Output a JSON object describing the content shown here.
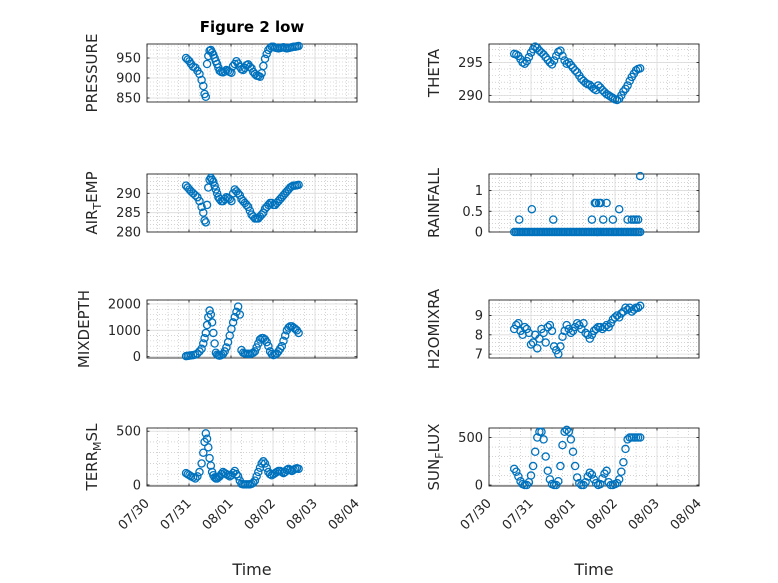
{
  "figure_title": "Figure 2 low",
  "chart_data": [
    {
      "type": "scatter",
      "panel": "top-left",
      "title": "Figure 2 low",
      "ylabel_parts": [
        "PRESSURE"
      ],
      "xlim": [
        0,
        5
      ],
      "ylim": [
        840,
        985
      ],
      "yticks": [
        850,
        900,
        950
      ],
      "ytick_labels": [
        "850",
        "900",
        "950"
      ],
      "x": [
        0.93,
        0.97,
        1.01,
        1.05,
        1.1,
        1.15,
        1.2,
        1.25,
        1.3,
        1.34,
        1.37,
        1.4,
        1.43,
        1.46,
        1.49,
        1.52,
        1.55,
        1.58,
        1.61,
        1.64,
        1.67,
        1.7,
        1.73,
        1.77,
        1.81,
        1.85,
        1.89,
        1.93,
        1.97,
        2.01,
        2.05,
        2.09,
        2.13,
        2.17,
        2.21,
        2.25,
        2.29,
        2.33,
        2.37,
        2.41,
        2.45,
        2.49,
        2.53,
        2.57,
        2.61,
        2.65,
        2.69,
        2.73,
        2.77,
        2.81,
        2.85,
        2.89,
        2.93,
        2.97,
        3.01,
        3.05,
        3.09,
        3.13,
        3.17,
        3.21,
        3.25,
        3.29,
        3.33,
        3.37,
        3.41,
        3.45,
        3.49,
        3.53,
        3.57,
        3.61
      ],
      "y": [
        950,
        946,
        942,
        935,
        928,
        926,
        918,
        910,
        895,
        880,
        860,
        853,
        935,
        955,
        968,
        970,
        964,
        958,
        950,
        942,
        935,
        926,
        918,
        915,
        914,
        916,
        920,
        918,
        915,
        913,
        930,
        935,
        942,
        936,
        928,
        922,
        920,
        925,
        932,
        934,
        928,
        924,
        915,
        910,
        906,
        905,
        903,
        912,
        930,
        948,
        960,
        970,
        975,
        978,
        978,
        976,
        975,
        974,
        975,
        976,
        977,
        975,
        974,
        975,
        976,
        977,
        978,
        978,
        979,
        980
      ]
    },
    {
      "type": "scatter",
      "panel": "top-right",
      "ylabel_parts": [
        "THETA"
      ],
      "xlim": [
        0,
        5
      ],
      "ylim": [
        289,
        297.8
      ],
      "yticks": [
        290,
        295
      ],
      "ytick_labels": [
        "290",
        "295"
      ],
      "x": [
        0.6,
        0.65,
        0.7,
        0.75,
        0.8,
        0.85,
        0.9,
        0.95,
        1.0,
        1.05,
        1.1,
        1.15,
        1.2,
        1.25,
        1.3,
        1.35,
        1.4,
        1.45,
        1.5,
        1.55,
        1.6,
        1.65,
        1.7,
        1.75,
        1.8,
        1.85,
        1.9,
        1.95,
        2.0,
        2.05,
        2.1,
        2.15,
        2.2,
        2.25,
        2.3,
        2.35,
        2.4,
        2.45,
        2.5,
        2.55,
        2.6,
        2.65,
        2.7,
        2.75,
        2.8,
        2.85,
        2.9,
        2.95,
        3.0,
        3.05,
        3.1,
        3.15,
        3.2,
        3.25,
        3.3,
        3.35,
        3.4,
        3.45,
        3.5,
        3.55,
        3.6
      ],
      "y": [
        296.3,
        296.2,
        296.0,
        295.5,
        295.0,
        294.8,
        295.2,
        295.8,
        296.5,
        297.0,
        297.4,
        297.2,
        296.8,
        296.5,
        296.2,
        295.8,
        295.4,
        295.0,
        294.7,
        295.3,
        296.0,
        296.6,
        296.8,
        296.0,
        295.3,
        294.8,
        295.0,
        294.6,
        294.2,
        293.8,
        293.5,
        293.0,
        292.5,
        292.2,
        291.9,
        291.7,
        291.6,
        291.3,
        291.0,
        290.8,
        291.5,
        291.2,
        290.8,
        290.5,
        290.2,
        290.0,
        289.8,
        289.6,
        289.4,
        289.3,
        289.5,
        290.0,
        290.6,
        291.0,
        291.5,
        292.2,
        292.8,
        293.3,
        293.8,
        294.0,
        294.1
      ]
    },
    {
      "type": "scatter",
      "panel": "row2-left",
      "ylabel_parts": [
        "AIR",
        "T",
        "EMP"
      ],
      "xlim": [
        0,
        5
      ],
      "ylim": [
        280,
        295
      ],
      "yticks": [
        280,
        285,
        290
      ],
      "ytick_labels": [
        "280",
        "285",
        "290"
      ],
      "x": [
        0.93,
        0.97,
        1.01,
        1.05,
        1.1,
        1.15,
        1.2,
        1.25,
        1.3,
        1.34,
        1.37,
        1.4,
        1.43,
        1.46,
        1.49,
        1.52,
        1.55,
        1.58,
        1.61,
        1.64,
        1.67,
        1.7,
        1.73,
        1.77,
        1.81,
        1.85,
        1.89,
        1.93,
        1.97,
        2.01,
        2.05,
        2.09,
        2.13,
        2.17,
        2.21,
        2.25,
        2.29,
        2.33,
        2.37,
        2.41,
        2.45,
        2.49,
        2.53,
        2.57,
        2.61,
        2.65,
        2.69,
        2.73,
        2.77,
        2.81,
        2.85,
        2.89,
        2.93,
        2.97,
        3.01,
        3.05,
        3.09,
        3.13,
        3.17,
        3.21,
        3.25,
        3.29,
        3.33,
        3.37,
        3.41,
        3.45,
        3.49,
        3.53,
        3.57,
        3.61
      ],
      "y": [
        292.0,
        291.5,
        291.0,
        290.5,
        290.0,
        289.5,
        289.0,
        288.0,
        286.5,
        285.0,
        283.0,
        282.5,
        287.0,
        291.5,
        293.5,
        294.0,
        293.5,
        293.0,
        292.0,
        291.0,
        290.0,
        289.0,
        288.5,
        288.0,
        288.0,
        288.5,
        289.0,
        288.8,
        288.5,
        288.0,
        290.0,
        291.0,
        290.5,
        290.0,
        289.5,
        288.5,
        288.0,
        287.5,
        287.0,
        286.5,
        285.5,
        284.5,
        284.0,
        283.5,
        283.5,
        283.5,
        284.0,
        284.5,
        285.0,
        286.0,
        286.5,
        287.0,
        287.5,
        287.5,
        287.0,
        287.0,
        287.5,
        288.0,
        288.5,
        289.0,
        289.5,
        290.0,
        290.5,
        291.0,
        291.5,
        291.8,
        292.0,
        292.0,
        292.1,
        292.2
      ]
    },
    {
      "type": "scatter",
      "panel": "row2-right",
      "ylabel_parts": [
        "RAINFALL"
      ],
      "xlim": [
        0,
        5
      ],
      "ylim": [
        0,
        1.4
      ],
      "yticks": [
        0,
        0.5,
        1
      ],
      "ytick_labels": [
        "0",
        "0.5",
        "1"
      ],
      "x": [
        0.6,
        0.64,
        0.68,
        0.72,
        0.76,
        0.8,
        0.84,
        0.88,
        0.92,
        0.96,
        1.0,
        1.04,
        1.08,
        1.12,
        1.16,
        1.2,
        1.24,
        1.28,
        1.32,
        1.36,
        1.4,
        1.44,
        1.48,
        1.52,
        1.56,
        1.6,
        1.64,
        1.68,
        1.72,
        1.76,
        1.8,
        1.84,
        1.88,
        1.92,
        1.96,
        2.0,
        2.04,
        2.08,
        2.12,
        2.16,
        2.2,
        2.24,
        2.28,
        2.32,
        2.36,
        2.4,
        2.44,
        2.48,
        2.52,
        2.56,
        2.6,
        2.64,
        2.68,
        2.72,
        2.76,
        2.8,
        2.84,
        2.88,
        2.92,
        2.96,
        3.0,
        3.04,
        3.08,
        3.12,
        3.16,
        3.2,
        3.24,
        3.28,
        3.32,
        3.36,
        3.4,
        3.44,
        3.48,
        3.52,
        3.56,
        3.6,
        0.72,
        1.02,
        1.53,
        2.45,
        2.52,
        2.55,
        2.58,
        2.62,
        2.66,
        2.72,
        2.8,
        2.95,
        3.1,
        3.3,
        3.4,
        3.45,
        3.5,
        3.55,
        3.6
      ],
      "y": [
        0,
        0,
        0,
        0,
        0,
        0,
        0,
        0,
        0,
        0,
        0,
        0,
        0,
        0,
        0,
        0,
        0,
        0,
        0,
        0,
        0,
        0,
        0,
        0,
        0,
        0,
        0,
        0,
        0,
        0,
        0,
        0,
        0,
        0,
        0,
        0,
        0,
        0,
        0,
        0,
        0,
        0,
        0,
        0,
        0,
        0,
        0,
        0,
        0,
        0,
        0,
        0,
        0,
        0,
        0,
        0,
        0,
        0,
        0,
        0,
        0,
        0,
        0,
        0,
        0,
        0,
        0,
        0,
        0,
        0,
        0,
        0,
        0,
        0,
        0,
        0,
        0.3,
        0.55,
        0.3,
        0.3,
        0.7,
        0.7,
        0,
        0.7,
        0.7,
        0.3,
        0.7,
        0.3,
        0.55,
        0.3,
        0.3,
        0.3,
        0.3,
        0.3,
        1.35
      ]
    },
    {
      "type": "scatter",
      "panel": "row3-left",
      "ylabel_parts": [
        "MIXDEPTH"
      ],
      "xlim": [
        0,
        5
      ],
      "ylim": [
        -50,
        2150
      ],
      "yticks": [
        0,
        1000,
        2000
      ],
      "ytick_labels": [
        "0",
        "1000",
        "2000"
      ],
      "x": [
        0.93,
        0.97,
        1.01,
        1.05,
        1.1,
        1.15,
        1.2,
        1.25,
        1.3,
        1.34,
        1.37,
        1.4,
        1.43,
        1.46,
        1.49,
        1.52,
        1.55,
        1.58,
        1.61,
        1.64,
        1.67,
        1.7,
        1.73,
        1.77,
        1.81,
        1.85,
        1.89,
        1.93,
        1.97,
        2.01,
        2.05,
        2.09,
        2.13,
        2.17,
        2.21,
        2.25,
        2.29,
        2.33,
        2.37,
        2.41,
        2.45,
        2.49,
        2.53,
        2.57,
        2.61,
        2.65,
        2.69,
        2.73,
        2.77,
        2.81,
        2.85,
        2.89,
        2.93,
        2.97,
        3.01,
        3.05,
        3.09,
        3.13,
        3.17,
        3.21,
        3.25,
        3.29,
        3.33,
        3.37,
        3.41,
        3.45,
        3.49,
        3.53,
        3.57,
        3.61
      ],
      "y": [
        20,
        30,
        40,
        50,
        60,
        80,
        120,
        200,
        300,
        500,
        700,
        900,
        1200,
        1500,
        1750,
        1600,
        1300,
        900,
        500,
        150,
        80,
        50,
        40,
        60,
        100,
        200,
        350,
        550,
        800,
        1050,
        1300,
        1500,
        1700,
        1900,
        1600,
        250,
        150,
        120,
        110,
        110,
        100,
        120,
        150,
        200,
        350,
        500,
        650,
        700,
        700,
        650,
        550,
        400,
        200,
        100,
        60,
        80,
        120,
        200,
        300,
        400,
        600,
        800,
        1000,
        1100,
        1150,
        1150,
        1100,
        1050,
        1000,
        900
      ]
    },
    {
      "type": "scatter",
      "panel": "row3-right",
      "ylabel_parts": [
        "H2OMIXRA"
      ],
      "xlim": [
        0,
        5
      ],
      "ylim": [
        6.8,
        9.8
      ],
      "yticks": [
        7,
        8,
        9
      ],
      "ytick_labels": [
        "7",
        "8",
        "9"
      ],
      "x": [
        0.6,
        0.65,
        0.7,
        0.75,
        0.8,
        0.85,
        0.9,
        0.95,
        1.0,
        1.05,
        1.1,
        1.15,
        1.2,
        1.25,
        1.3,
        1.35,
        1.4,
        1.45,
        1.5,
        1.55,
        1.6,
        1.65,
        1.7,
        1.75,
        1.8,
        1.85,
        1.9,
        1.95,
        2.0,
        2.05,
        2.1,
        2.15,
        2.2,
        2.25,
        2.3,
        2.35,
        2.4,
        2.45,
        2.5,
        2.55,
        2.6,
        2.65,
        2.7,
        2.75,
        2.8,
        2.85,
        2.9,
        2.95,
        3.0,
        3.05,
        3.1,
        3.15,
        3.2,
        3.25,
        3.3,
        3.35,
        3.4,
        3.45,
        3.5,
        3.55,
        3.6
      ],
      "y": [
        8.3,
        8.5,
        8.6,
        8.2,
        8.0,
        8.4,
        8.3,
        8.1,
        7.5,
        7.6,
        8.0,
        7.3,
        7.8,
        8.3,
        8.1,
        7.6,
        8.4,
        8.5,
        8.2,
        7.4,
        7.2,
        7.0,
        7.4,
        7.9,
        8.2,
        8.5,
        8.3,
        8.1,
        8.2,
        8.4,
        8.6,
        8.5,
        8.3,
        8.6,
        8.1,
        8.0,
        7.8,
        8.0,
        8.2,
        8.3,
        8.4,
        8.4,
        8.3,
        8.4,
        8.5,
        8.4,
        8.6,
        8.8,
        8.9,
        9.0,
        8.9,
        9.1,
        9.2,
        9.4,
        9.3,
        9.4,
        9.2,
        9.3,
        9.4,
        9.4,
        9.5
      ]
    },
    {
      "type": "scatter",
      "panel": "bottom-left",
      "ylabel_parts": [
        "TERR",
        "M",
        "SL"
      ],
      "xlim": [
        0,
        5
      ],
      "ylim": [
        -10,
        530
      ],
      "yticks": [
        0,
        500
      ],
      "ytick_labels": [
        "0",
        "500"
      ],
      "xticks": [
        0,
        1,
        2,
        3,
        4,
        5
      ],
      "xtick_labels": [
        "07/30",
        "07/31",
        "08/01",
        "08/02",
        "08/03",
        "08/04"
      ],
      "xlabel": "Time",
      "x": [
        0.93,
        0.97,
        1.01,
        1.05,
        1.1,
        1.15,
        1.2,
        1.25,
        1.3,
        1.34,
        1.37,
        1.4,
        1.43,
        1.46,
        1.49,
        1.52,
        1.55,
        1.58,
        1.61,
        1.64,
        1.67,
        1.7,
        1.73,
        1.77,
        1.81,
        1.85,
        1.89,
        1.93,
        1.97,
        2.01,
        2.05,
        2.09,
        2.13,
        2.17,
        2.21,
        2.25,
        2.29,
        2.33,
        2.37,
        2.41,
        2.45,
        2.49,
        2.53,
        2.57,
        2.61,
        2.65,
        2.69,
        2.73,
        2.77,
        2.81,
        2.85,
        2.89,
        2.93,
        2.97,
        3.01,
        3.05,
        3.09,
        3.13,
        3.17,
        3.21,
        3.25,
        3.29,
        3.33,
        3.37,
        3.41,
        3.45,
        3.49,
        3.53,
        3.57,
        3.61
      ],
      "y": [
        110,
        100,
        90,
        80,
        70,
        60,
        80,
        120,
        200,
        300,
        400,
        480,
        430,
        350,
        250,
        180,
        120,
        90,
        70,
        60,
        60,
        70,
        80,
        100,
        120,
        110,
        100,
        90,
        80,
        90,
        110,
        130,
        100,
        80,
        40,
        10,
        5,
        5,
        5,
        5,
        5,
        10,
        20,
        40,
        80,
        120,
        160,
        200,
        220,
        200,
        160,
        120,
        100,
        90,
        100,
        110,
        120,
        130,
        130,
        120,
        110,
        120,
        140,
        150,
        140,
        130,
        140,
        150,
        155,
        150
      ]
    },
    {
      "type": "scatter",
      "panel": "bottom-right",
      "ylabel_parts": [
        "SUN",
        "F",
        "LUX"
      ],
      "xlim": [
        0,
        5
      ],
      "ylim": [
        -10,
        600
      ],
      "yticks": [
        0,
        500
      ],
      "ytick_labels": [
        "0",
        "500"
      ],
      "xticks": [
        0,
        1,
        2,
        3,
        4,
        5
      ],
      "xtick_labels": [
        "07/30",
        "07/31",
        "08/01",
        "08/02",
        "08/03",
        "08/04"
      ],
      "xlabel": "Time",
      "x": [
        0.6,
        0.65,
        0.7,
        0.75,
        0.8,
        0.85,
        0.9,
        0.95,
        1.0,
        1.05,
        1.1,
        1.15,
        1.2,
        1.25,
        1.3,
        1.35,
        1.4,
        1.45,
        1.5,
        1.55,
        1.6,
        1.65,
        1.7,
        1.75,
        1.8,
        1.85,
        1.9,
        1.95,
        2.0,
        2.05,
        2.1,
        2.15,
        2.2,
        2.25,
        2.3,
        2.35,
        2.4,
        2.45,
        2.5,
        2.55,
        2.6,
        2.65,
        2.7,
        2.75,
        2.8,
        2.85,
        2.9,
        2.95,
        3.0,
        3.05,
        3.1,
        3.15,
        3.2,
        3.25,
        3.3,
        3.35,
        3.4,
        3.45,
        3.5,
        3.55,
        3.6
      ],
      "y": [
        170,
        140,
        90,
        40,
        10,
        0,
        0,
        30,
        100,
        200,
        350,
        500,
        560,
        560,
        480,
        300,
        150,
        60,
        10,
        0,
        0,
        40,
        200,
        420,
        560,
        580,
        560,
        480,
        350,
        200,
        80,
        20,
        0,
        0,
        30,
        90,
        130,
        110,
        60,
        20,
        0,
        10,
        70,
        120,
        150,
        30,
        0,
        0,
        10,
        20,
        60,
        140,
        240,
        380,
        480,
        500,
        500,
        500,
        500,
        500,
        500
      ]
    }
  ],
  "colors": {
    "marker": "#0072BD",
    "axis": "#262626",
    "grid": "#dcdcdc",
    "minor_grid": "#b8b8b8"
  }
}
